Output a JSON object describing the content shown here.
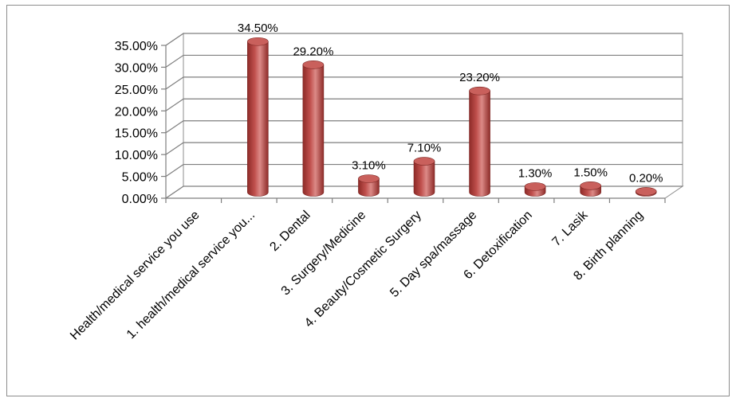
{
  "chart_data": {
    "type": "bar",
    "style": "3d-cylinder",
    "categories": [
      "Health/medical service you use",
      "1. health/medical service you...",
      "2. Dental",
      "3. Surgery/Medicine",
      "4. Beauty/Cosmetic Surgery",
      "5. Day spa/massage",
      "6. Detoxification",
      "7. Lasik",
      "8. Birth planning"
    ],
    "values": [
      null,
      34.5,
      29.2,
      3.1,
      7.1,
      23.2,
      1.3,
      1.5,
      0.2
    ],
    "data_labels": [
      "",
      "34.50%",
      "29.20%",
      "3.10%",
      "7.10%",
      "23.20%",
      "1.30%",
      "1.50%",
      "0.20%"
    ],
    "yticks": [
      "0.00%",
      "5.00%",
      "10.00%",
      "15.00%",
      "20.00%",
      "25.00%",
      "30.00%",
      "35.00%"
    ],
    "ylim": [
      0,
      35
    ],
    "title": "",
    "xlabel": "",
    "ylabel": "",
    "grid": true,
    "legend": "none",
    "bar_color": "#c0504d",
    "bar_dark_color": "#8e2b28",
    "bar_light_color": "#dc8a87"
  }
}
